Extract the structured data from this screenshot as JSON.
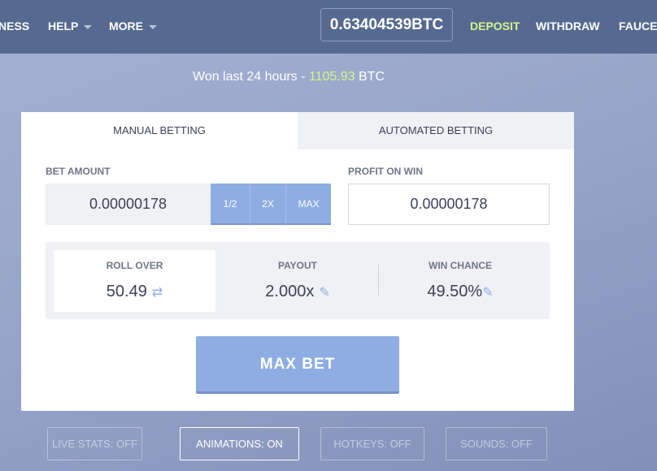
{
  "header": {
    "nav": [
      {
        "label": "NESS"
      },
      {
        "label": "HELP"
      },
      {
        "label": "MORE"
      }
    ],
    "balance": "0.63404539BTC",
    "deposit": "DEPOSIT",
    "withdraw": "WITHDRAW",
    "faucet": "FAUCET",
    "deposit_color": "#d4f58a"
  },
  "won": {
    "prefix": "Won last 24 hours  - ",
    "amount": "1105.93",
    "unit": " BTC"
  },
  "tabs": [
    {
      "label": "MANUAL BETTING",
      "active": true
    },
    {
      "label": "AUTOMATED BETTING",
      "active": false
    }
  ],
  "bet": {
    "label": "BET AMOUNT",
    "value": "0.00000178",
    "half": "1/2",
    "double": "2X",
    "max": "MAX"
  },
  "profit": {
    "label": "PROFIT ON WIN",
    "value": "0.00000178"
  },
  "stats": {
    "roll_label": "ROLL OVER",
    "roll_value": "50.49",
    "payout_label": "PAYOUT",
    "payout_value": "2.000x",
    "chance_label": "WIN CHANCE",
    "chance_value": "49.50%"
  },
  "max_bet": "MAX BET",
  "toggles": [
    {
      "label": "LIVE STATS: OFF"
    },
    {
      "label": "ANIMATIONS: ON"
    },
    {
      "label": "HOTKEYS: OFF"
    },
    {
      "label": "SOUNDS: OFF"
    }
  ],
  "accent": "#8eaee3"
}
